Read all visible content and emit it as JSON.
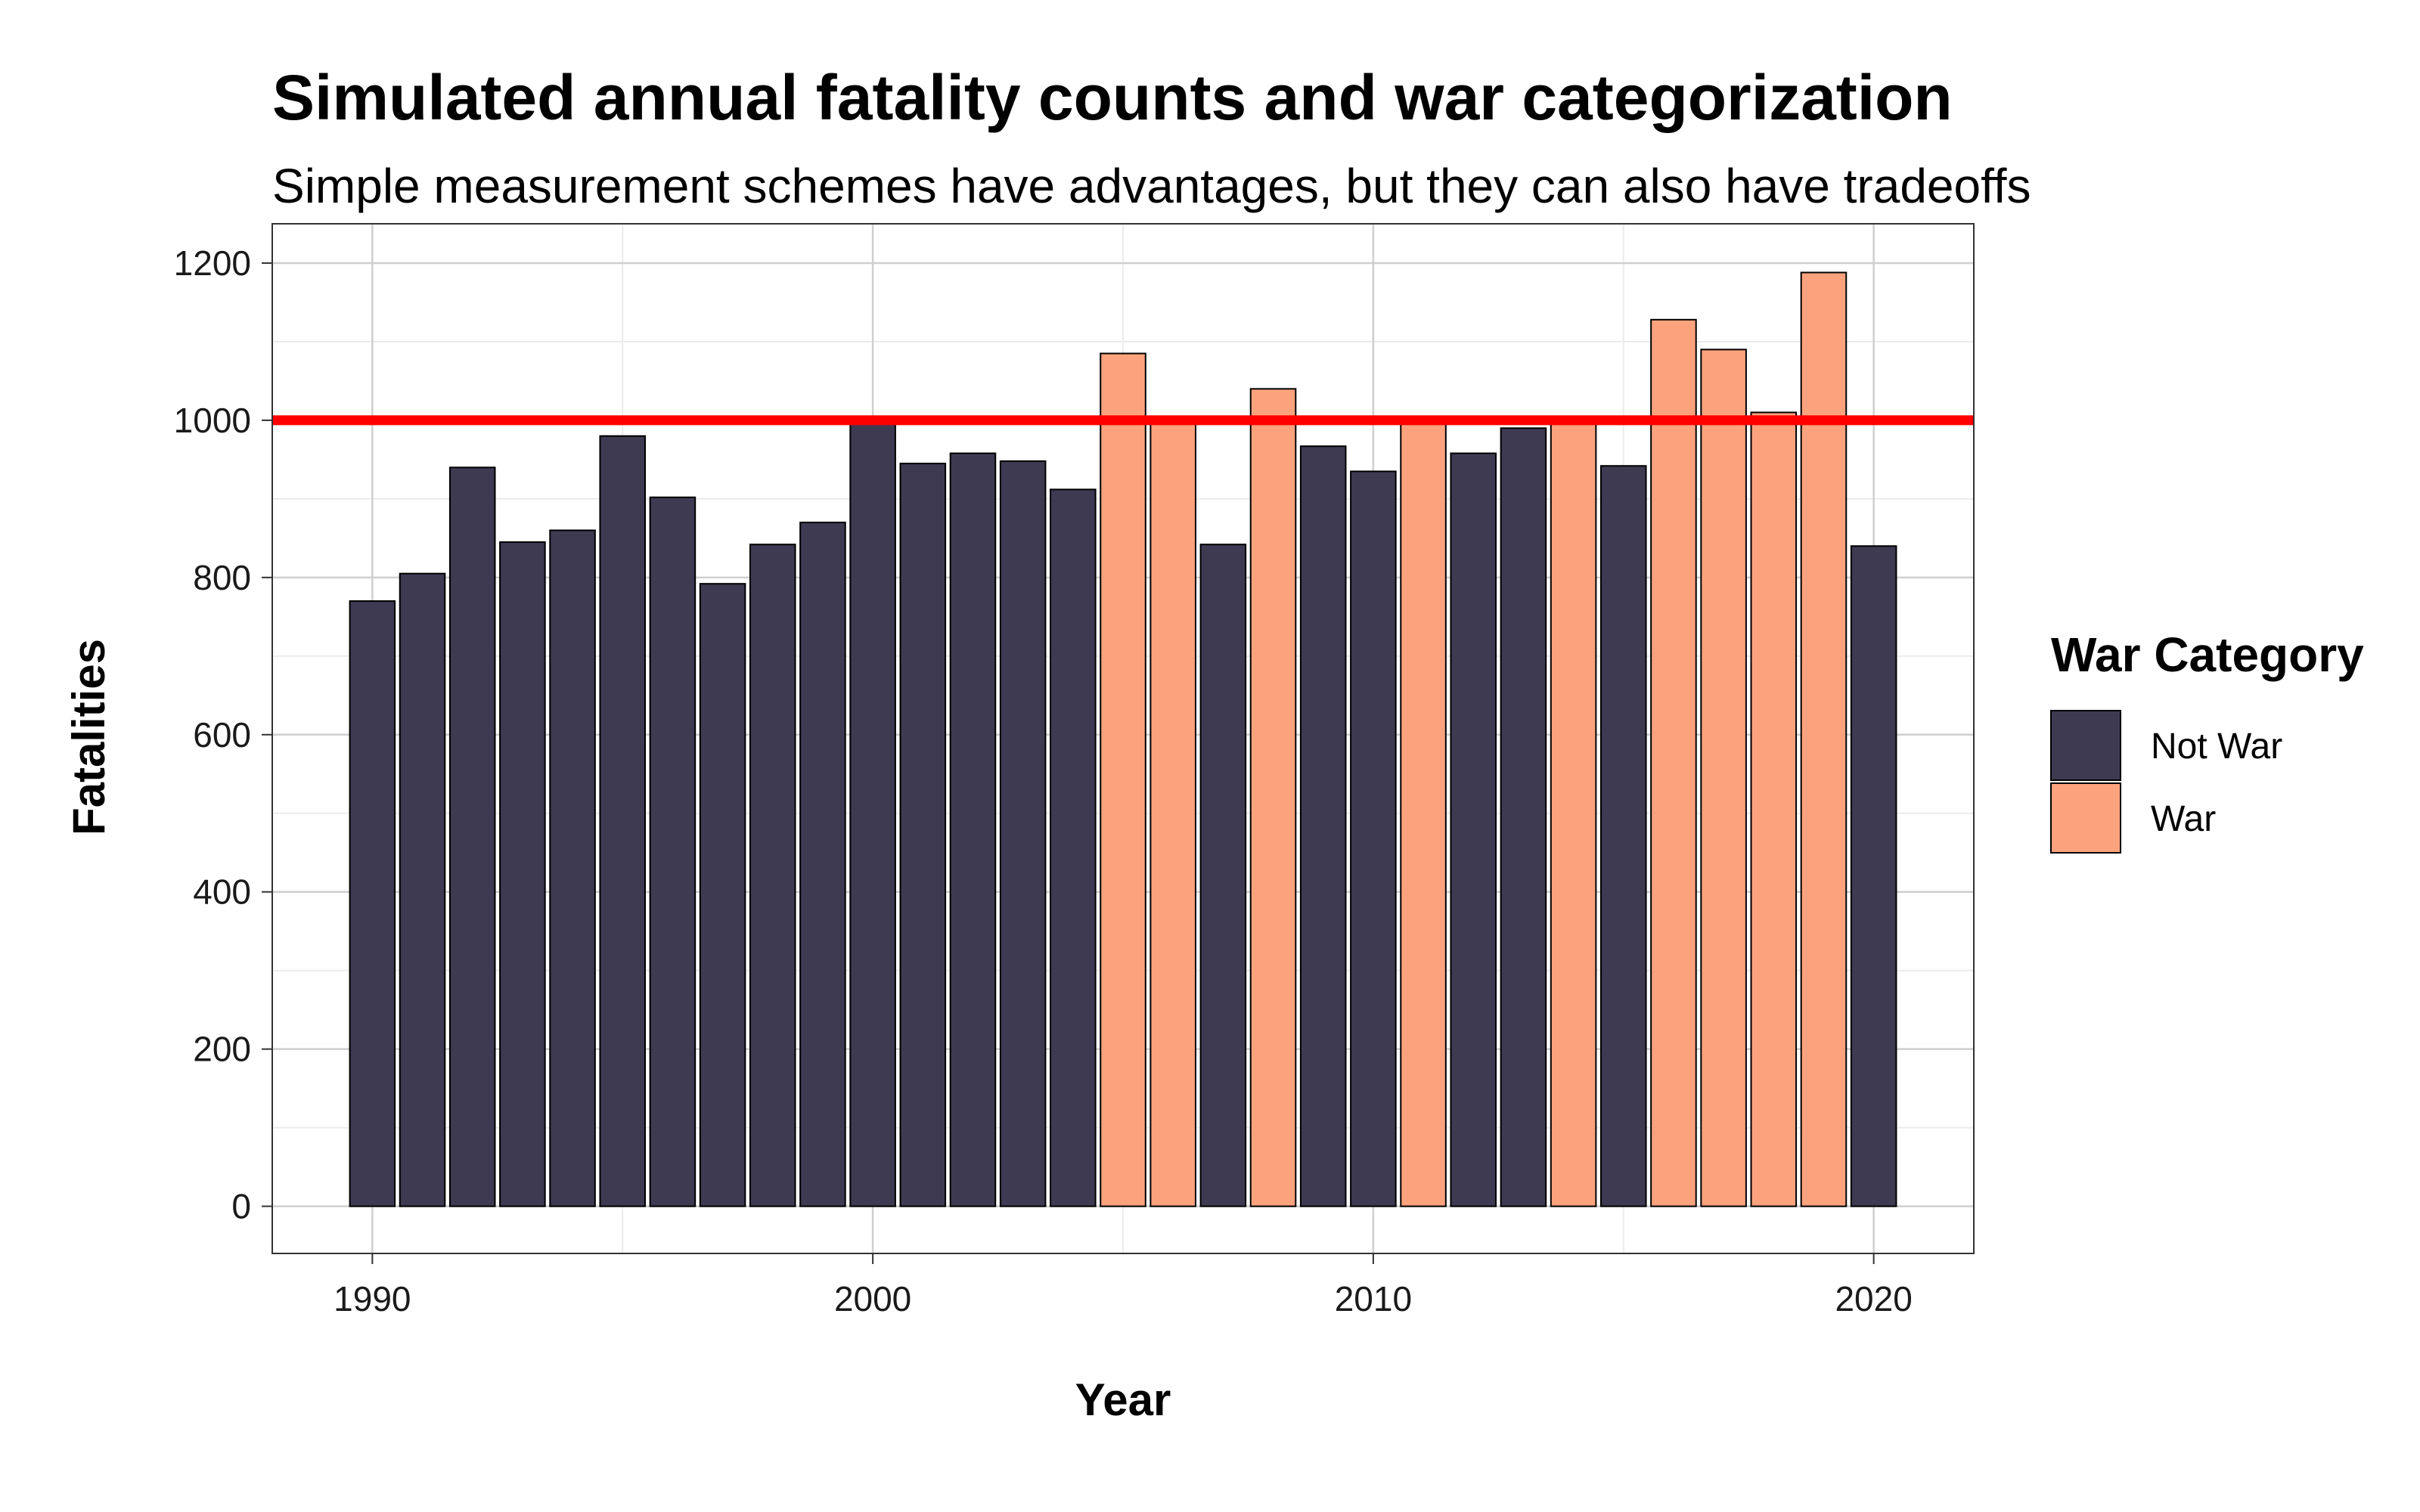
{
  "chart_data": {
    "type": "bar",
    "title": "Simulated annual fatality counts and war categorization",
    "subtitle": "Simple measurement schemes have advantages, but they can also have tradeoffs",
    "xlabel": "Year",
    "ylabel": "Fatalities",
    "xlim": [
      1988,
      2022
    ],
    "ylim": [
      -60,
      1250
    ],
    "x_ticks": [
      1990,
      2000,
      2010,
      2020
    ],
    "y_ticks": [
      0,
      200,
      400,
      600,
      800,
      1000,
      1200
    ],
    "threshold": {
      "value": 1000,
      "color": "#ff0000"
    },
    "grid": true,
    "legend": {
      "title": "War Category",
      "position": "right",
      "entries": [
        {
          "name": "Not War",
          "color": "#3d3a52"
        },
        {
          "name": "War",
          "color": "#fca37e"
        }
      ]
    },
    "bars": [
      {
        "year": 1990,
        "value": 770,
        "category": "Not War"
      },
      {
        "year": 1991,
        "value": 805,
        "category": "Not War"
      },
      {
        "year": 1992,
        "value": 940,
        "category": "Not War"
      },
      {
        "year": 1993,
        "value": 845,
        "category": "Not War"
      },
      {
        "year": 1994,
        "value": 860,
        "category": "Not War"
      },
      {
        "year": 1995,
        "value": 980,
        "category": "Not War"
      },
      {
        "year": 1996,
        "value": 902,
        "category": "Not War"
      },
      {
        "year": 1997,
        "value": 792,
        "category": "Not War"
      },
      {
        "year": 1998,
        "value": 842,
        "category": "Not War"
      },
      {
        "year": 1999,
        "value": 870,
        "category": "Not War"
      },
      {
        "year": 2000,
        "value": 1000,
        "category": "Not War"
      },
      {
        "year": 2001,
        "value": 945,
        "category": "Not War"
      },
      {
        "year": 2002,
        "value": 958,
        "category": "Not War"
      },
      {
        "year": 2003,
        "value": 948,
        "category": "Not War"
      },
      {
        "year": 2004,
        "value": 912,
        "category": "Not War"
      },
      {
        "year": 2005,
        "value": 1085,
        "category": "War"
      },
      {
        "year": 2006,
        "value": 1002,
        "category": "War"
      },
      {
        "year": 2007,
        "value": 842,
        "category": "Not War"
      },
      {
        "year": 2008,
        "value": 1040,
        "category": "War"
      },
      {
        "year": 2009,
        "value": 967,
        "category": "Not War"
      },
      {
        "year": 2010,
        "value": 935,
        "category": "Not War"
      },
      {
        "year": 2011,
        "value": 1002,
        "category": "War"
      },
      {
        "year": 2012,
        "value": 958,
        "category": "Not War"
      },
      {
        "year": 2013,
        "value": 990,
        "category": "Not War"
      },
      {
        "year": 2014,
        "value": 1005,
        "category": "War"
      },
      {
        "year": 2015,
        "value": 942,
        "category": "Not War"
      },
      {
        "year": 2016,
        "value": 1128,
        "category": "War"
      },
      {
        "year": 2017,
        "value": 1090,
        "category": "War"
      },
      {
        "year": 2018,
        "value": 1010,
        "category": "War"
      },
      {
        "year": 2019,
        "value": 1188,
        "category": "War"
      },
      {
        "year": 2020,
        "value": 840,
        "category": "Not War"
      }
    ]
  }
}
